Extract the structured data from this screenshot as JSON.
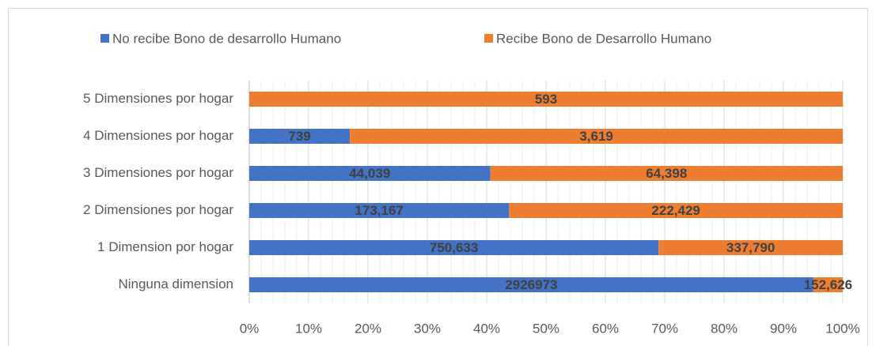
{
  "chart_data": {
    "type": "stacked_percent_bar",
    "categories": [
      "5 Dimensiones por hogar",
      "4 Dimensiones por hogar",
      "3 Dimensiones por hogar",
      "2 Dimensiones por hogar",
      "1 Dimension por hogar",
      "Ninguna dimension"
    ],
    "series": [
      {
        "name": "No recibe Bono de desarrollo Humano",
        "color": "#4472c4",
        "values": [
          0,
          739,
          44039,
          173167,
          750633,
          2926973
        ],
        "value_labels": [
          "0",
          "739",
          "44,039",
          "173,167",
          "750,633",
          "2926973"
        ]
      },
      {
        "name": "Recibe Bono de Desarrollo Humano",
        "color": "#ed7d31",
        "values": [
          593,
          3619,
          64398,
          222429,
          337790,
          152626
        ],
        "value_labels": [
          "593",
          "3,619",
          "64,398",
          "222,429",
          "337,790",
          "152,626"
        ]
      }
    ],
    "xlim": [
      0,
      100
    ],
    "xticks": [
      {
        "value": 0,
        "label": "0%"
      },
      {
        "value": 10,
        "label": "10%"
      },
      {
        "value": 20,
        "label": "20%"
      },
      {
        "value": 30,
        "label": "30%"
      },
      {
        "value": 40,
        "label": "40%"
      },
      {
        "value": 50,
        "label": "50%"
      },
      {
        "value": 60,
        "label": "60%"
      },
      {
        "value": 70,
        "label": "70%"
      },
      {
        "value": 80,
        "label": "80%"
      },
      {
        "value": 90,
        "label": "90%"
      },
      {
        "value": 100,
        "label": "100%"
      }
    ],
    "grid": true,
    "legend": "top"
  }
}
